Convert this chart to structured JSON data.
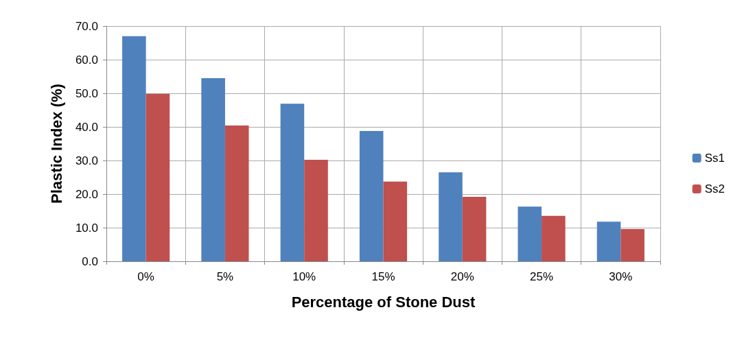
{
  "chart_data": {
    "type": "bar",
    "xlabel": "Percentage of Stone Dust",
    "ylabel": "Plastic Index (%)",
    "categories": [
      "0%",
      "5%",
      "10%",
      "15%",
      "20%",
      "25%",
      "30%"
    ],
    "series": [
      {
        "name": "Ss1",
        "color": "#4f81bd",
        "values": [
          67.0,
          54.5,
          46.9,
          38.8,
          26.5,
          16.3,
          11.8
        ]
      },
      {
        "name": "Ss2",
        "color": "#c0504d",
        "values": [
          49.8,
          40.4,
          30.2,
          23.7,
          19.2,
          13.5,
          9.6
        ]
      }
    ],
    "ylim": [
      0,
      70
    ],
    "yticks": [
      {
        "value": 0,
        "label": "0.0"
      },
      {
        "value": 10,
        "label": "10.0"
      },
      {
        "value": 20,
        "label": "20.0"
      },
      {
        "value": 30,
        "label": "30.0"
      },
      {
        "value": 40,
        "label": "40.0"
      },
      {
        "value": 50,
        "label": "50.0"
      },
      {
        "value": 60,
        "label": "60.0"
      },
      {
        "value": 70,
        "label": "70.0"
      }
    ],
    "grid": true,
    "legend": "right"
  }
}
